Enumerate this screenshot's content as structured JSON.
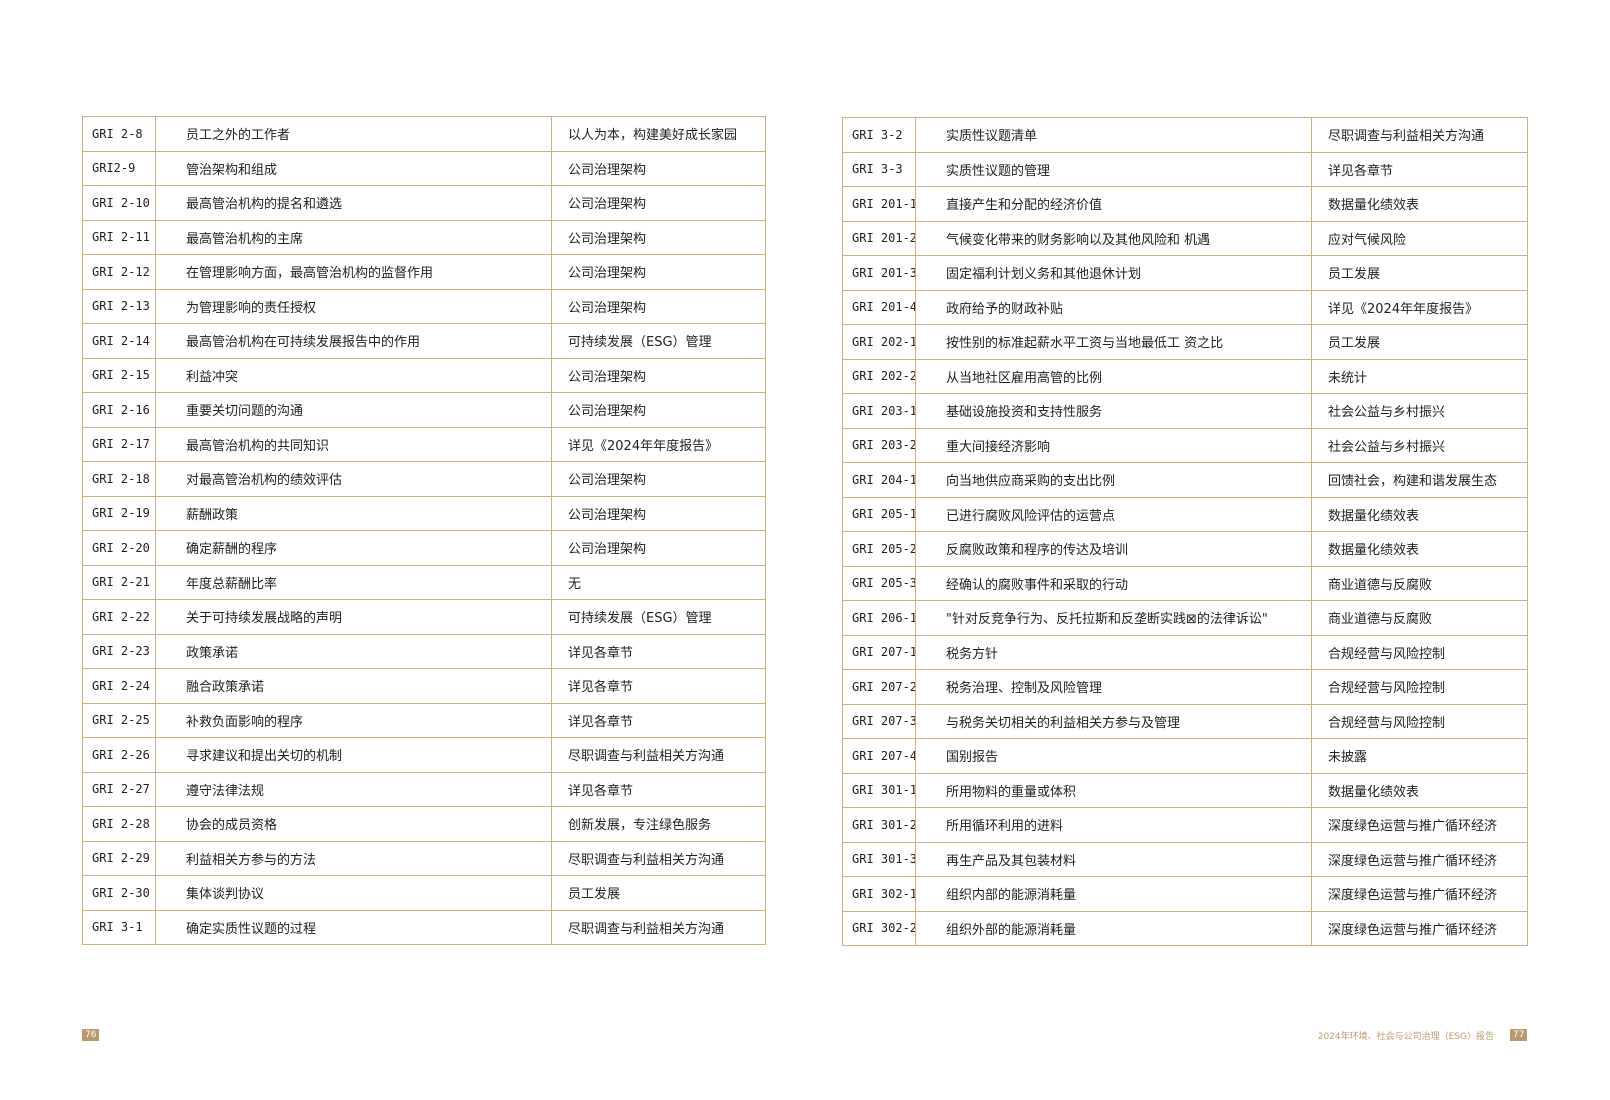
{
  "left_table": {
    "rows": [
      [
        "GRI 2-8",
        "员工之外的工作者",
        "以人为本，构建美好成长家园"
      ],
      [
        "GRI2-9",
        "管治架构和组成",
        "公司治理架构"
      ],
      [
        "GRI 2-10",
        "最高管治机构的提名和遴选",
        "公司治理架构"
      ],
      [
        "GRI 2-11",
        "最高管治机构的主席",
        "公司治理架构"
      ],
      [
        "GRI 2-12",
        "在管理影响方面，最高管治机构的监督作用",
        "公司治理架构"
      ],
      [
        "GRI 2-13",
        "为管理影响的责任授权",
        "公司治理架构"
      ],
      [
        "GRI 2-14",
        "最高管治机构在可持续发展报告中的作用",
        "可持续发展（ESG）管理"
      ],
      [
        "GRI 2-15",
        "利益冲突",
        "公司治理架构"
      ],
      [
        "GRI 2-16",
        "重要关切问题的沟通",
        "公司治理架构"
      ],
      [
        "GRI 2-17",
        "最高管治机构的共同知识",
        "详见《2024年年度报告》"
      ],
      [
        "GRI 2-18",
        "对最高管治机构的绩效评估",
        "公司治理架构"
      ],
      [
        "GRI 2-19",
        "薪酬政策",
        "公司治理架构"
      ],
      [
        "GRI 2-20",
        "确定薪酬的程序",
        "公司治理架构"
      ],
      [
        "GRI 2-21",
        "年度总薪酬比率",
        "无"
      ],
      [
        "GRI 2-22",
        "关于可持续发展战略的声明",
        "可持续发展（ESG）管理"
      ],
      [
        "GRI 2-23",
        "政策承诺",
        "详见各章节"
      ],
      [
        "GRI 2-24",
        "融合政策承诺",
        "详见各章节"
      ],
      [
        "GRI 2-25",
        "补救负面影响的程序",
        "详见各章节"
      ],
      [
        "GRI 2-26",
        "寻求建议和提出关切的机制",
        "尽职调查与利益相关方沟通"
      ],
      [
        "GRI 2-27",
        "遵守法律法规",
        "详见各章节"
      ],
      [
        "GRI 2-28",
        "协会的成员资格",
        "创新发展，专注绿色服务"
      ],
      [
        "GRI 2-29",
        "利益相关方参与的方法",
        "尽职调查与利益相关方沟通"
      ],
      [
        "GRI 2-30",
        "集体谈判协议",
        "员工发展"
      ],
      [
        "GRI 3-1",
        "确定实质性议题的过程",
        "尽职调查与利益相关方沟通"
      ]
    ]
  },
  "right_table": {
    "rows": [
      [
        "GRI 3-2",
        "实质性议题清单",
        "尽职调查与利益相关方沟通"
      ],
      [
        "GRI 3-3",
        "实质性议题的管理",
        "详见各章节"
      ],
      [
        "GRI 201-1",
        "直接产生和分配的经济价值",
        "数据量化绩效表"
      ],
      [
        "GRI 201-2",
        "气候变化带来的财务影响以及其他风险和 机遇",
        "应对气候风险"
      ],
      [
        "GRI 201-3",
        "固定福利计划义务和其他退休计划",
        "员工发展"
      ],
      [
        "GRI 201-4",
        "政府给予的财政补贴",
        "详见《2024年年度报告》"
      ],
      [
        "GRI 202-1",
        "按性别的标准起薪水平工资与当地最低工 资之比",
        "员工发展"
      ],
      [
        "GRI 202-2",
        "从当地社区雇用高管的比例",
        "未统计"
      ],
      [
        "GRI 203-1",
        "基础设施投资和支持性服务",
        "社会公益与乡村振兴"
      ],
      [
        "GRI 203-2",
        "重大间接经济影响",
        "社会公益与乡村振兴"
      ],
      [
        "GRI 204-1",
        "向当地供应商采购的支出比例",
        "回馈社会，构建和谐发展生态"
      ],
      [
        "GRI 205-1",
        "已进行腐败风险评估的运营点",
        "数据量化绩效表"
      ],
      [
        "GRI 205-2",
        "反腐败政策和程序的传达及培训",
        "数据量化绩效表"
      ],
      [
        "GRI 205-3",
        "经确认的腐败事件和采取的行动",
        "商业道德与反腐败"
      ],
      [
        "GRI 206-1",
        "\"针对反竞争行为、反托拉斯和反垄断实践⊠的法律诉讼\"",
        "商业道德与反腐败"
      ],
      [
        "GRI 207-1",
        "税务方针",
        "合规经营与风险控制"
      ],
      [
        "GRI 207-2",
        "税务治理、控制及风险管理",
        "合规经营与风险控制"
      ],
      [
        "GRI 207-3",
        "与税务关切相关的利益相关方参与及管理",
        "合规经营与风险控制"
      ],
      [
        "GRI 207-4",
        "国别报告",
        "未披露"
      ],
      [
        "GRI 301-1",
        "所用物料的重量或体积",
        "数据量化绩效表"
      ],
      [
        "GRI 301-2",
        "所用循环利用的进料",
        "深度绿色运营与推广循环经济"
      ],
      [
        "GRI 301-3",
        "再生产品及其包装材料",
        "深度绿色运营与推广循环经济"
      ],
      [
        "GRI 302-1",
        "组织内部的能源消耗量",
        "深度绿色运营与推广循环经济"
      ],
      [
        "GRI 302-2",
        "组织外部的能源消耗量",
        "深度绿色运营与推广循环经济"
      ]
    ]
  },
  "footer": {
    "left_page": "76",
    "report_title": "2024年环境、社会与公司治理（ESG）报告",
    "right_page": "77"
  }
}
